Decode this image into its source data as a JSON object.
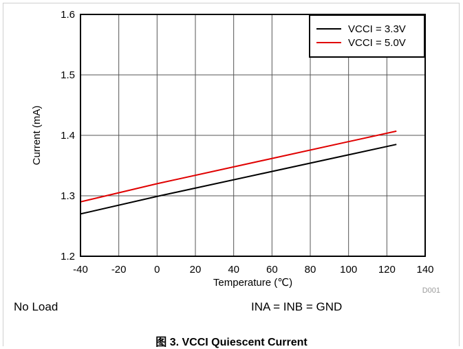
{
  "chart_data": {
    "type": "line",
    "xlabel": "Temperature (℃)",
    "ylabel": "Current (mA)",
    "xlim": [
      -40,
      140
    ],
    "ylim": [
      1.2,
      1.6
    ],
    "xticks": [
      -40,
      -20,
      0,
      20,
      40,
      60,
      80,
      100,
      120,
      140
    ],
    "yticks": [
      1.2,
      1.3,
      1.4,
      1.5,
      1.6
    ],
    "grid": true,
    "legend": "top-right",
    "series": [
      {
        "name": "VCCI = 3.3V",
        "color": "#000000",
        "x": [
          -40,
          0,
          125
        ],
        "y": [
          1.27,
          1.299,
          1.385
        ]
      },
      {
        "name": "VCCI = 5.0V",
        "color": "#e00000",
        "x": [
          -40,
          0,
          125
        ],
        "y": [
          1.29,
          1.32,
          1.407
        ]
      }
    ],
    "annotation": "D001"
  },
  "notes": {
    "left": "No Load",
    "right": "INA = INB = GND"
  },
  "caption": "图 3. VCCI Quiescent Current"
}
